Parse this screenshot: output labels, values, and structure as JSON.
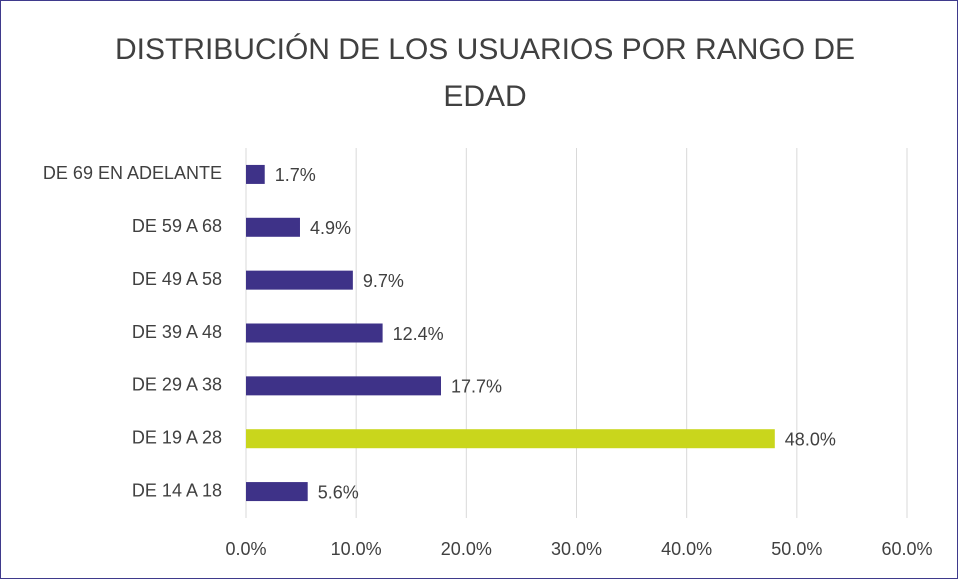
{
  "chart_data": {
    "type": "barh",
    "title": "DISTRIBUCIÓN DE LOS USUARIOS POR RANGO DE EDAD",
    "categories": [
      "DE 69 EN ADELANTE",
      "DE 59 A 68",
      "DE 49 A 58",
      "DE 39 A 48",
      "DE 29 A 38",
      "DE 19 A 28",
      "DE 14 A 18"
    ],
    "values": [
      1.7,
      4.9,
      9.7,
      12.4,
      17.7,
      48.0,
      5.6
    ],
    "value_labels": [
      "1.7%",
      "4.9%",
      "9.7%",
      "12.4%",
      "17.7%",
      "48.0%",
      "5.6%"
    ],
    "colors": [
      "#3e3288",
      "#3e3288",
      "#3e3288",
      "#3e3288",
      "#3e3288",
      "#c9d61c",
      "#3e3288"
    ],
    "xlim": [
      0,
      60
    ],
    "xticks": [
      {
        "value": 0,
        "label": "0.0%"
      },
      {
        "value": 10,
        "label": "10.0%"
      },
      {
        "value": 20,
        "label": "20.0%"
      },
      {
        "value": 30,
        "label": "30.0%"
      },
      {
        "value": 40,
        "label": "40.0%"
      },
      {
        "value": 50,
        "label": "50.0%"
      },
      {
        "value": 60,
        "label": "60.0%"
      }
    ],
    "grid": true
  }
}
